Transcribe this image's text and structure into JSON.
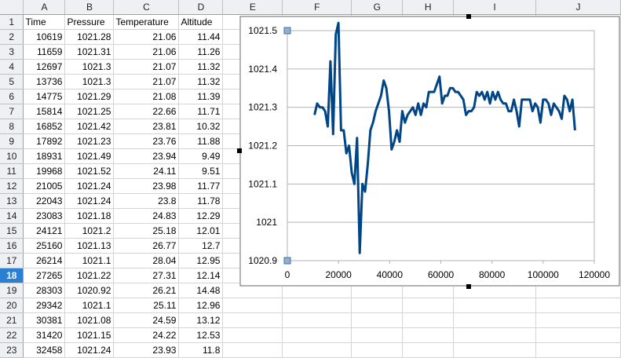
{
  "columns": [
    "A",
    "B",
    "C",
    "D",
    "E",
    "F",
    "G",
    "H",
    "I",
    "J"
  ],
  "headers": [
    "Time",
    "Pressure",
    "Temperature",
    "Altitude"
  ],
  "active_row": 18,
  "rows": [
    {
      "n": "2",
      "time": "10619",
      "pressure": "1021.28",
      "temp": "21.06",
      "alt": "11.44"
    },
    {
      "n": "3",
      "time": "11659",
      "pressure": "1021.31",
      "temp": "21.06",
      "alt": "11.26"
    },
    {
      "n": "4",
      "time": "12697",
      "pressure": "1021.3",
      "temp": "21.07",
      "alt": "11.32"
    },
    {
      "n": "5",
      "time": "13736",
      "pressure": "1021.3",
      "temp": "21.07",
      "alt": "11.32"
    },
    {
      "n": "6",
      "time": "14775",
      "pressure": "1021.29",
      "temp": "21.08",
      "alt": "11.39"
    },
    {
      "n": "7",
      "time": "15814",
      "pressure": "1021.25",
      "temp": "22.66",
      "alt": "11.71"
    },
    {
      "n": "8",
      "time": "16852",
      "pressure": "1021.42",
      "temp": "23.81",
      "alt": "10.32"
    },
    {
      "n": "9",
      "time": "17892",
      "pressure": "1021.23",
      "temp": "23.76",
      "alt": "11.88"
    },
    {
      "n": "10",
      "time": "18931",
      "pressure": "1021.49",
      "temp": "23.94",
      "alt": "9.49"
    },
    {
      "n": "11",
      "time": "19968",
      "pressure": "1021.52",
      "temp": "24.11",
      "alt": "9.51"
    },
    {
      "n": "12",
      "time": "21005",
      "pressure": "1021.24",
      "temp": "23.98",
      "alt": "11.77"
    },
    {
      "n": "13",
      "time": "22043",
      "pressure": "1021.24",
      "temp": "23.8",
      "alt": "11.78"
    },
    {
      "n": "14",
      "time": "23083",
      "pressure": "1021.18",
      "temp": "24.83",
      "alt": "12.29"
    },
    {
      "n": "15",
      "time": "24121",
      "pressure": "1021.2",
      "temp": "25.18",
      "alt": "12.01"
    },
    {
      "n": "16",
      "time": "25160",
      "pressure": "1021.13",
      "temp": "26.77",
      "alt": "12.7"
    },
    {
      "n": "17",
      "time": "26214",
      "pressure": "1021.1",
      "temp": "28.04",
      "alt": "12.95"
    },
    {
      "n": "18",
      "time": "27265",
      "pressure": "1021.22",
      "temp": "27.31",
      "alt": "12.14"
    },
    {
      "n": "19",
      "time": "28303",
      "pressure": "1020.92",
      "temp": "26.21",
      "alt": "14.48"
    },
    {
      "n": "20",
      "time": "29342",
      "pressure": "1021.1",
      "temp": "25.11",
      "alt": "12.96"
    },
    {
      "n": "21",
      "time": "30381",
      "pressure": "1021.08",
      "temp": "24.59",
      "alt": "13.12"
    },
    {
      "n": "22",
      "time": "31420",
      "pressure": "1021.15",
      "temp": "24.22",
      "alt": "12.53"
    },
    {
      "n": "23",
      "time": "32458",
      "pressure": "1021.24",
      "temp": "23.93",
      "alt": "11.8"
    }
  ],
  "chart_data": {
    "type": "line",
    "title": "",
    "xlabel": "",
    "ylabel": "",
    "xlim": [
      0,
      120000
    ],
    "ylim": [
      1020.9,
      1021.5
    ],
    "x_ticks": [
      "0",
      "20000",
      "40000",
      "60000",
      "80000",
      "100000",
      "120000"
    ],
    "y_ticks": [
      "1020.9",
      "1021",
      "1021.1",
      "1021.2",
      "1021.3",
      "1021.4",
      "1021.5"
    ],
    "grid": "horizontal",
    "legend": "none",
    "line_color": "#004586",
    "series": [
      {
        "x": [
          10619,
          11659,
          12697,
          13736,
          14775,
          15814,
          16852,
          17892,
          18931,
          19968,
          21005,
          22043,
          23083,
          24121,
          25160,
          26214,
          27265,
          28303,
          29342,
          30381,
          31420,
          32458,
          33497,
          34536,
          35575,
          36614,
          37653,
          38692,
          39731,
          40770,
          41809,
          42848,
          43887,
          44926,
          45965,
          47004,
          48043,
          49082,
          50121,
          51160,
          52199,
          53238,
          54277,
          55316,
          56355,
          57394,
          58433,
          59472,
          60511,
          61550,
          62589,
          63628,
          64667,
          65706,
          66745,
          67784,
          68823,
          69862,
          70901,
          71940,
          72979,
          74018,
          75057,
          76096,
          77135,
          78174,
          79213,
          80252,
          81291,
          82330,
          83369,
          84408,
          85447,
          86486,
          87525,
          88564,
          89603,
          90642,
          91681,
          92720,
          93759,
          94798,
          95837,
          96876,
          97915,
          98954,
          99993,
          101032,
          102071,
          103110,
          104149,
          105188,
          106227,
          107266,
          108305,
          109344,
          110383,
          111422,
          112461
        ],
        "y": [
          1021.28,
          1021.31,
          1021.3,
          1021.3,
          1021.29,
          1021.25,
          1021.42,
          1021.23,
          1021.49,
          1021.52,
          1021.24,
          1021.24,
          1021.18,
          1021.2,
          1021.13,
          1021.1,
          1021.22,
          1020.92,
          1021.1,
          1021.08,
          1021.15,
          1021.24,
          1021.26,
          1021.29,
          1021.31,
          1021.33,
          1021.37,
          1021.35,
          1021.29,
          1021.19,
          1021.21,
          1021.24,
          1021.21,
          1021.29,
          1021.26,
          1021.28,
          1021.29,
          1021.3,
          1021.28,
          1021.31,
          1021.28,
          1021.31,
          1021.3,
          1021.34,
          1021.34,
          1021.34,
          1021.36,
          1021.38,
          1021.31,
          1021.33,
          1021.33,
          1021.35,
          1021.35,
          1021.34,
          1021.34,
          1021.33,
          1021.32,
          1021.28,
          1021.29,
          1021.29,
          1021.3,
          1021.34,
          1021.33,
          1021.34,
          1021.32,
          1021.34,
          1021.31,
          1021.34,
          1021.32,
          1021.34,
          1021.32,
          1021.31,
          1021.31,
          1021.29,
          1021.29,
          1021.32,
          1021.29,
          1021.25,
          1021.32,
          1021.32,
          1021.32,
          1021.32,
          1021.29,
          1021.31,
          1021.3,
          1021.26,
          1021.32,
          1021.32,
          1021.31,
          1021.28,
          1021.31,
          1021.3,
          1021.29,
          1021.27,
          1021.33,
          1021.32,
          1021.29,
          1021.32,
          1021.24
        ]
      }
    ]
  }
}
